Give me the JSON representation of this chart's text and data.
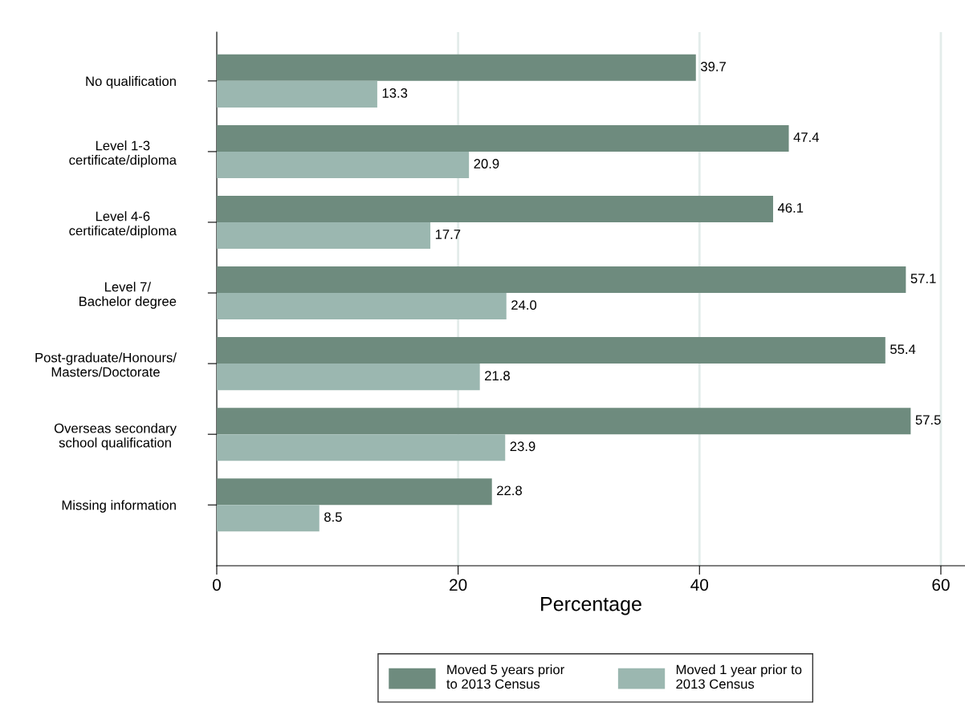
{
  "chart_data": {
    "type": "bar",
    "orientation": "horizontal",
    "xlabel": "Percentage",
    "categories": [
      "No qualification",
      "Level 1-3\ncertificate/diploma",
      "Level 4-6\ncertificate/diploma",
      "Level 7/\nBachelor degree",
      "Post-graduate/Honours/\nMasters/Doctorate",
      "Overseas secondary\nschool qualification",
      "Missing information"
    ],
    "series": [
      {
        "name": "Moved 5 years prior\nto 2013 Census",
        "color": "#6e8b7e",
        "values": [
          39.7,
          47.4,
          46.1,
          57.1,
          55.4,
          57.5,
          22.8
        ],
        "value_labels": [
          "39.7",
          "47.4",
          "46.1",
          "57.1",
          "55.4",
          "57.5",
          "22.8"
        ]
      },
      {
        "name": "Moved 1 year prior to\n2013 Census",
        "color": "#9bb7b0",
        "values": [
          13.3,
          20.9,
          17.7,
          24,
          21.8,
          23.9,
          8.5
        ],
        "value_labels": [
          "13.3",
          "20.9",
          "17.7",
          "24.0",
          "21.8",
          "23.9",
          "8.5"
        ]
      }
    ],
    "xlim": [
      0,
      62
    ],
    "xticks": [
      0,
      20,
      40,
      60
    ],
    "grid": "x",
    "legend": "bottom"
  }
}
